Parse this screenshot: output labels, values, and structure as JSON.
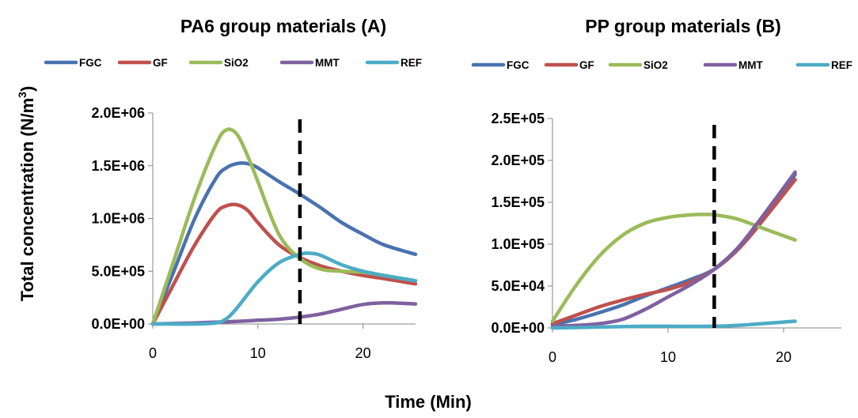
{
  "figure": {
    "ylabel_main": "Total concentration (N/m",
    "ylabel_sup": "3",
    "ylabel_end": ")",
    "xlabel": "Time (Min)"
  },
  "colors": {
    "FGC": "#4a72b0",
    "GF": "#c0504d",
    "SiO2": "#9bbb59",
    "MMT": "#7f60a0",
    "REF": "#4bacc6"
  },
  "chart_data": [
    {
      "type": "line",
      "title": "PA6 group materials (A)",
      "xlabel": "",
      "ylabel": "Total concentration (N/m3)",
      "xlim": [
        0,
        25
      ],
      "ylim": [
        0,
        2000000
      ],
      "xticks": [
        0,
        10,
        20
      ],
      "xtick_labels": [
        "0",
        "10",
        "20"
      ],
      "yticks": [
        0,
        500000,
        1000000,
        1500000,
        2000000
      ],
      "ytick_labels": [
        "0.0E+00",
        "5.0E+05",
        "1.0E+06",
        "1.5E+06",
        "2.0E+06"
      ],
      "vline_x": 14,
      "grid": false,
      "legend_position": "top",
      "series": [
        {
          "name": "FGC",
          "x": [
            0,
            2,
            4,
            6,
            7,
            8,
            9,
            10,
            12,
            14,
            16,
            18,
            20,
            22,
            25
          ],
          "y": [
            0,
            500000,
            1000000,
            1380000,
            1480000,
            1520000,
            1520000,
            1480000,
            1350000,
            1230000,
            1100000,
            960000,
            850000,
            750000,
            660000
          ]
        },
        {
          "name": "GF",
          "x": [
            0,
            2,
            4,
            6,
            7,
            8,
            9,
            10,
            12,
            14,
            16,
            18,
            20,
            22,
            25
          ],
          "y": [
            0,
            380000,
            750000,
            1050000,
            1120000,
            1130000,
            1080000,
            960000,
            750000,
            630000,
            550000,
            500000,
            460000,
            430000,
            380000
          ]
        },
        {
          "name": "SiO2",
          "x": [
            0,
            2,
            4,
            6,
            7,
            8,
            9,
            10,
            12,
            14,
            16,
            18,
            20,
            22,
            25
          ],
          "y": [
            0,
            600000,
            1200000,
            1700000,
            1840000,
            1800000,
            1600000,
            1350000,
            850000,
            620000,
            520000,
            500000,
            490000,
            460000,
            410000
          ]
        },
        {
          "name": "MMT",
          "x": [
            0,
            4,
            8,
            10,
            12,
            14,
            16,
            18,
            20,
            22,
            24,
            25
          ],
          "y": [
            0,
            10000,
            25000,
            35000,
            45000,
            65000,
            95000,
            140000,
            185000,
            200000,
            195000,
            190000
          ]
        },
        {
          "name": "REF",
          "x": [
            0,
            4,
            6,
            7,
            8,
            10,
            12,
            14,
            15,
            16,
            18,
            20,
            22,
            25
          ],
          "y": [
            0,
            0,
            10000,
            50000,
            150000,
            400000,
            580000,
            660000,
            670000,
            650000,
            560000,
            500000,
            460000,
            410000
          ]
        }
      ]
    },
    {
      "type": "line",
      "title": "PP group materials (B)",
      "xlabel": "",
      "ylabel": "",
      "xlim": [
        0,
        25
      ],
      "ylim": [
        0,
        250000
      ],
      "xticks": [
        0,
        10,
        20
      ],
      "xtick_labels": [
        "0",
        "10",
        "20"
      ],
      "yticks": [
        0,
        50000,
        100000,
        150000,
        200000,
        250000
      ],
      "ytick_labels": [
        "0.0E+00",
        "5.0E+04",
        "1.0E+05",
        "1.5E+05",
        "2.0E+05",
        "2.5E+05"
      ],
      "vline_x": 14,
      "grid": false,
      "legend_position": "top",
      "series": [
        {
          "name": "FGC",
          "x": [
            0,
            2,
            4,
            6,
            8,
            10,
            12,
            14,
            16,
            18,
            21
          ],
          "y": [
            4000,
            10000,
            18000,
            27000,
            38000,
            48000,
            58000,
            70000,
            93000,
            125000,
            183000
          ]
        },
        {
          "name": "GF",
          "x": [
            0,
            2,
            4,
            6,
            8,
            10,
            12,
            14,
            16,
            18,
            21
          ],
          "y": [
            5000,
            15000,
            25000,
            33000,
            40000,
            46000,
            55000,
            70000,
            93000,
            125000,
            177000
          ]
        },
        {
          "name": "SiO2",
          "x": [
            0,
            2,
            4,
            6,
            8,
            10,
            12,
            13,
            14,
            16,
            18,
            20,
            21
          ],
          "y": [
            8000,
            50000,
            85000,
            110000,
            125000,
            132000,
            135000,
            135500,
            135000,
            130000,
            120000,
            110000,
            105000
          ]
        },
        {
          "name": "MMT",
          "x": [
            0,
            2,
            4,
            6,
            8,
            10,
            12,
            14,
            16,
            18,
            21
          ],
          "y": [
            2000,
            3000,
            5000,
            10000,
            22000,
            37000,
            52000,
            70000,
            95000,
            130000,
            186000
          ]
        },
        {
          "name": "REF",
          "x": [
            0,
            4,
            8,
            10,
            14,
            16,
            18,
            20,
            21
          ],
          "y": [
            0,
            1000,
            2000,
            2000,
            2000,
            3000,
            5000,
            7000,
            8000
          ]
        }
      ]
    }
  ]
}
